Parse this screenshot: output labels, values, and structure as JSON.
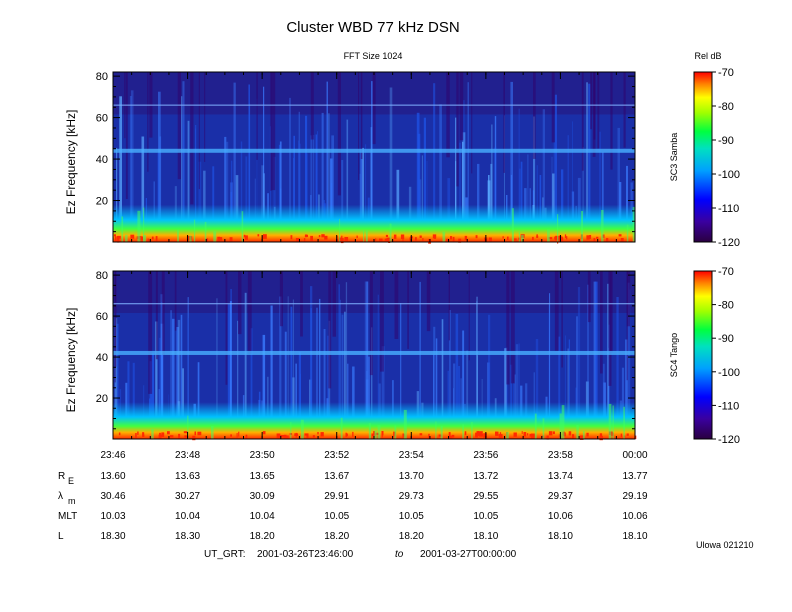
{
  "title": "Cluster WBD 77 kHz DSN",
  "fft_label": "FFT Size 1024",
  "colorbar_unit": "Rel dB",
  "credit": "Ulowa 021210",
  "time_range": {
    "label": "UT_GRT:",
    "start": "2001-03-26T23:46:00",
    "to": "to",
    "end": "2001-03-27T00:00:00"
  },
  "colors": {
    "background": "#ffffff",
    "spectrogram_bg": "#1a2fa8",
    "low_band": "#ff2a00"
  },
  "chart_data": [
    {
      "type": "heatmap",
      "panel": "SC3 Samba",
      "ylabel": "Ez Frequency [kHz]",
      "ylim": [
        0,
        82
      ],
      "yticks": [
        20,
        40,
        60,
        80
      ],
      "xticks": [
        "23:46",
        "23:48",
        "23:50",
        "23:52",
        "23:54",
        "23:56",
        "23:58",
        "00:00"
      ],
      "colorbar": {
        "label": "SC3 Samba",
        "range": [
          -120,
          -70
        ],
        "ticks": [
          -70,
          -80,
          -90,
          -100,
          -110,
          -120
        ]
      },
      "features": [
        {
          "name": "interference line",
          "frequency_khz": 66
        },
        {
          "name": "emission band",
          "frequency_khz": 44
        }
      ]
    },
    {
      "type": "heatmap",
      "panel": "SC4 Tango",
      "ylabel": "Ez Frequency [kHz]",
      "ylim": [
        0,
        82
      ],
      "yticks": [
        20,
        40,
        60,
        80
      ],
      "xticks": [
        "23:46",
        "23:48",
        "23:50",
        "23:52",
        "23:54",
        "23:56",
        "23:58",
        "00:00"
      ],
      "colorbar": {
        "label": "SC4 Tango",
        "range": [
          -120,
          -70
        ],
        "ticks": [
          -70,
          -80,
          -90,
          -100,
          -110,
          -120
        ]
      },
      "features": [
        {
          "name": "interference line",
          "frequency_khz": 66
        },
        {
          "name": "emission band",
          "frequency_khz": 42
        }
      ]
    }
  ],
  "ephemeris": {
    "rows": [
      {
        "label": "R",
        "sub": "E",
        "values": [
          "13.60",
          "13.63",
          "13.65",
          "13.67",
          "13.70",
          "13.72",
          "13.74",
          "13.77"
        ]
      },
      {
        "label": "λ",
        "sub": "m",
        "values": [
          "30.46",
          "30.27",
          "30.09",
          "29.91",
          "29.73",
          "29.55",
          "29.37",
          "29.19"
        ]
      },
      {
        "label": "MLT",
        "sub": "",
        "values": [
          "10.03",
          "10.04",
          "10.04",
          "10.05",
          "10.05",
          "10.05",
          "10.06",
          "10.06"
        ]
      },
      {
        "label": "L",
        "sub": "",
        "values": [
          "18.30",
          "18.30",
          "18.20",
          "18.20",
          "18.20",
          "18.10",
          "18.10",
          "18.10"
        ]
      }
    ]
  }
}
